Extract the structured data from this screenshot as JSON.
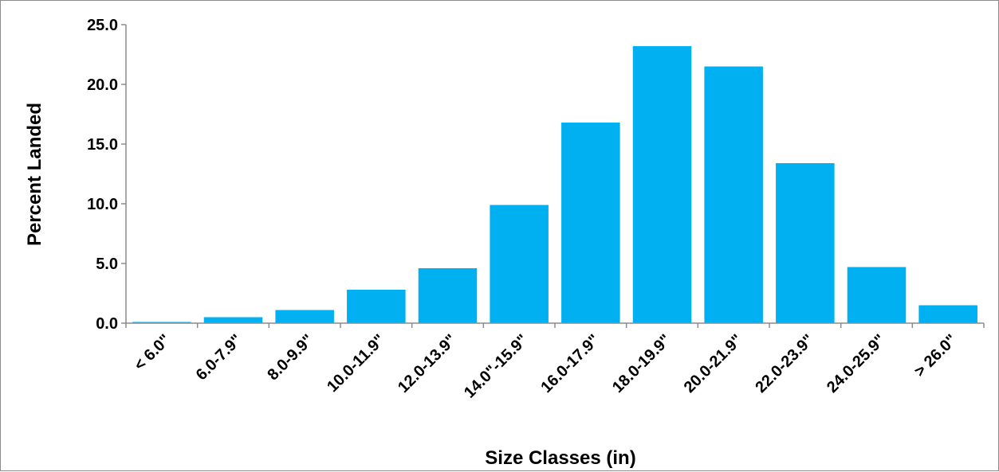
{
  "chart_data": {
    "type": "bar",
    "title": "",
    "xlabel": "Size Classes (in)",
    "ylabel": "Percent Landed",
    "categories": [
      "< 6.0\"",
      "6.0-7.9\"",
      "8.0-9.9\"",
      "10.0-11.9\"",
      "12.0-13.9\"",
      "14.0\"-15.9\"",
      "16.0-17.9\"",
      "18.0-19.9\"",
      "20.0-21.9\"",
      "22.0-23.9\"",
      "24.0-25.9\"",
      "> 26.0\""
    ],
    "values": [
      0.1,
      0.5,
      1.1,
      2.8,
      4.6,
      9.9,
      16.8,
      23.2,
      21.5,
      13.4,
      4.7,
      1.5
    ],
    "ylim": [
      0,
      25
    ],
    "yticks": [
      "0.0",
      "5.0",
      "10.0",
      "15.0",
      "20.0",
      "25.0"
    ],
    "grid": false,
    "legend": "none",
    "bar_color": "#00b0f0"
  }
}
